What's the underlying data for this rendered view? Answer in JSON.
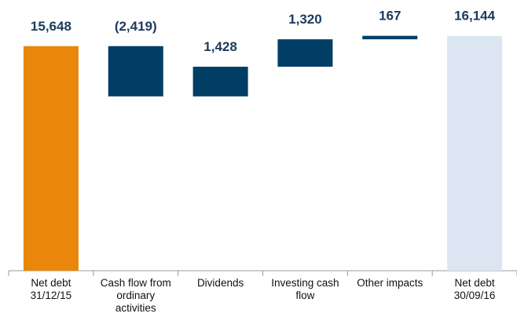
{
  "chart_data": {
    "type": "waterfall",
    "categories": [
      "Net debt 31/12/15",
      "Cash flow from ordinary activities",
      "Dividends",
      "Investing cash flow",
      "Other impacts",
      "Net debt 30/09/16"
    ],
    "values": [
      15648,
      -2419,
      1428,
      1320,
      167,
      16144
    ],
    "value_labels": [
      "15,648",
      "(2,419)",
      "1,428",
      "1,320",
      "167",
      "16,144"
    ],
    "colors": [
      "#e8870b",
      "#003e65",
      "#003e65",
      "#003e65",
      "#003e65",
      "#dce6f2"
    ],
    "ylim": [
      4838,
      17000
    ]
  }
}
